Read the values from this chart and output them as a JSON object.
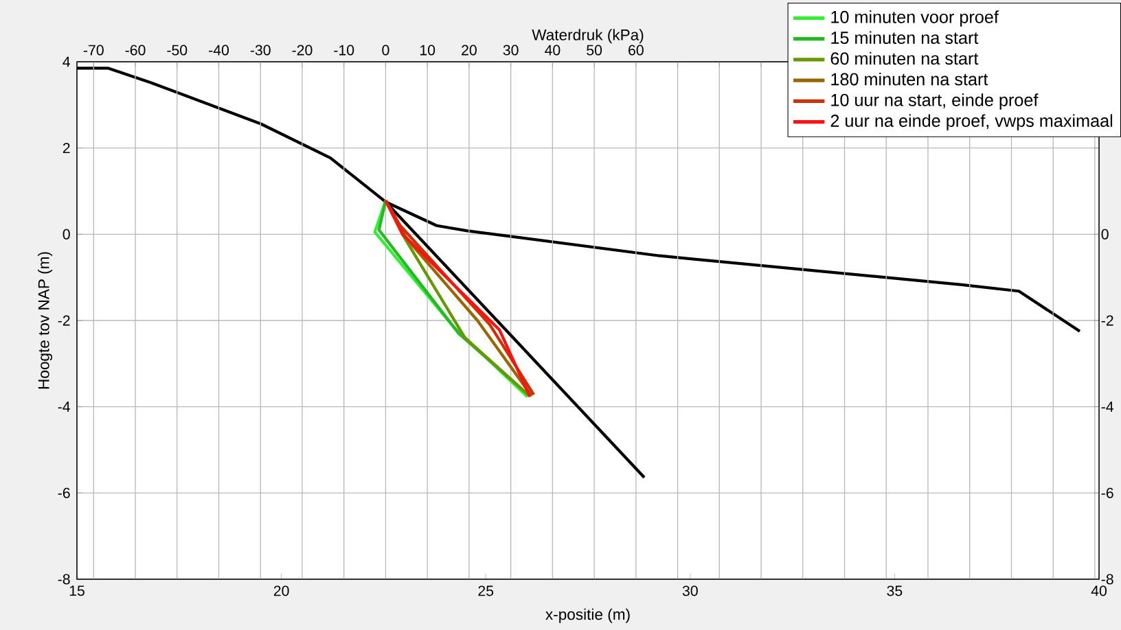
{
  "chart_data": {
    "type": "line",
    "xlabel": "x-positie (m)",
    "ylabel": "Hoogte tov NAP (m)",
    "x2label": "Waterdruk (kPa)",
    "xlim": [
      15,
      40
    ],
    "xticks": [
      15,
      20,
      25,
      30,
      35,
      40
    ],
    "x2lim": [
      -74,
      171
    ],
    "x2ticks": [
      -70,
      -60,
      -50,
      -40,
      -30,
      -20,
      -10,
      0,
      10,
      20,
      30,
      40,
      50,
      60,
      {
        "value": 70,
        "label": null
      },
      {
        "value": 80,
        "label": null
      },
      {
        "value": 90,
        "label": null
      },
      {
        "value": 100,
        "label": null
      },
      {
        "value": 110,
        "label": null
      },
      {
        "value": 120,
        "label": null
      },
      {
        "value": 130,
        "label": null
      },
      {
        "value": 140,
        "label": null
      },
      {
        "value": 150,
        "label": null
      },
      {
        "value": 160,
        "label": null
      },
      {
        "value": 170,
        "label": null
      }
    ],
    "ylim": [
      -8,
      4
    ],
    "yticks": [
      -8,
      -6,
      -4,
      -2,
      0,
      2,
      4
    ],
    "y2lim": [
      -8,
      4
    ],
    "y2ticks": [
      -8,
      -6,
      -4,
      -2,
      0,
      {
        "value": 2,
        "label": null
      },
      {
        "value": 4,
        "label": null
      }
    ],
    "grid": true,
    "legend": "top right",
    "marker": "none",
    "series": [
      {
        "color": "#000000",
        "x": [
          15,
          15.77,
          16.8,
          19.5,
          21.2,
          22.55,
          23.8,
          24.55,
          29.25,
          36.64,
          38.04,
          39.53
        ],
        "values": [
          3.85,
          3.85,
          3.52,
          2.56,
          1.77,
          0.75,
          0.2,
          0.08,
          -0.5,
          -1.17,
          -1.32,
          -2.25
        ]
      },
      {
        "color": "#000000",
        "axis": "x2",
        "x": [
          0,
          62
        ],
        "values": [
          0.75,
          -5.64
        ]
      },
      {
        "name": "10 minuten voor proef",
        "color": "#33ee33",
        "axis": "x2",
        "x": [
          0,
          -2.6,
          16.3,
          34
        ],
        "values": [
          0.78,
          0.05,
          -2.15,
          -3.77
        ]
      },
      {
        "name": "15 minuten na start",
        "color": "#22bb22",
        "axis": "x2",
        "x": [
          0,
          -1.6,
          17.5,
          34.5
        ],
        "values": [
          0.78,
          0.1,
          -2.3,
          -3.75
        ]
      },
      {
        "name": "60 minuten na start",
        "color": "#669900",
        "axis": "x2",
        "x": [
          0,
          4,
          19,
          34.5
        ],
        "values": [
          0.78,
          0.0,
          -2.4,
          -3.75
        ]
      },
      {
        "name": "180 minuten na start",
        "color": "#996600",
        "axis": "x2",
        "x": [
          0,
          5,
          22,
          35
        ],
        "values": [
          0.78,
          -0.1,
          -2.0,
          -3.75
        ]
      },
      {
        "name": "10 uur na start, einde proef",
        "color": "#cc3300",
        "axis": "x2",
        "x": [
          0,
          3.5,
          25,
          35.5
        ],
        "values": [
          0.78,
          0.2,
          -2.1,
          -3.72
        ]
      },
      {
        "name": "2 uur na einde proef, vwps maximaal",
        "color": "#ff1111",
        "axis": "x2",
        "x": [
          0,
          4.1,
          27.3,
          34.6
        ],
        "values": [
          0.78,
          0.0,
          -2.22,
          -3.77
        ]
      }
    ]
  }
}
